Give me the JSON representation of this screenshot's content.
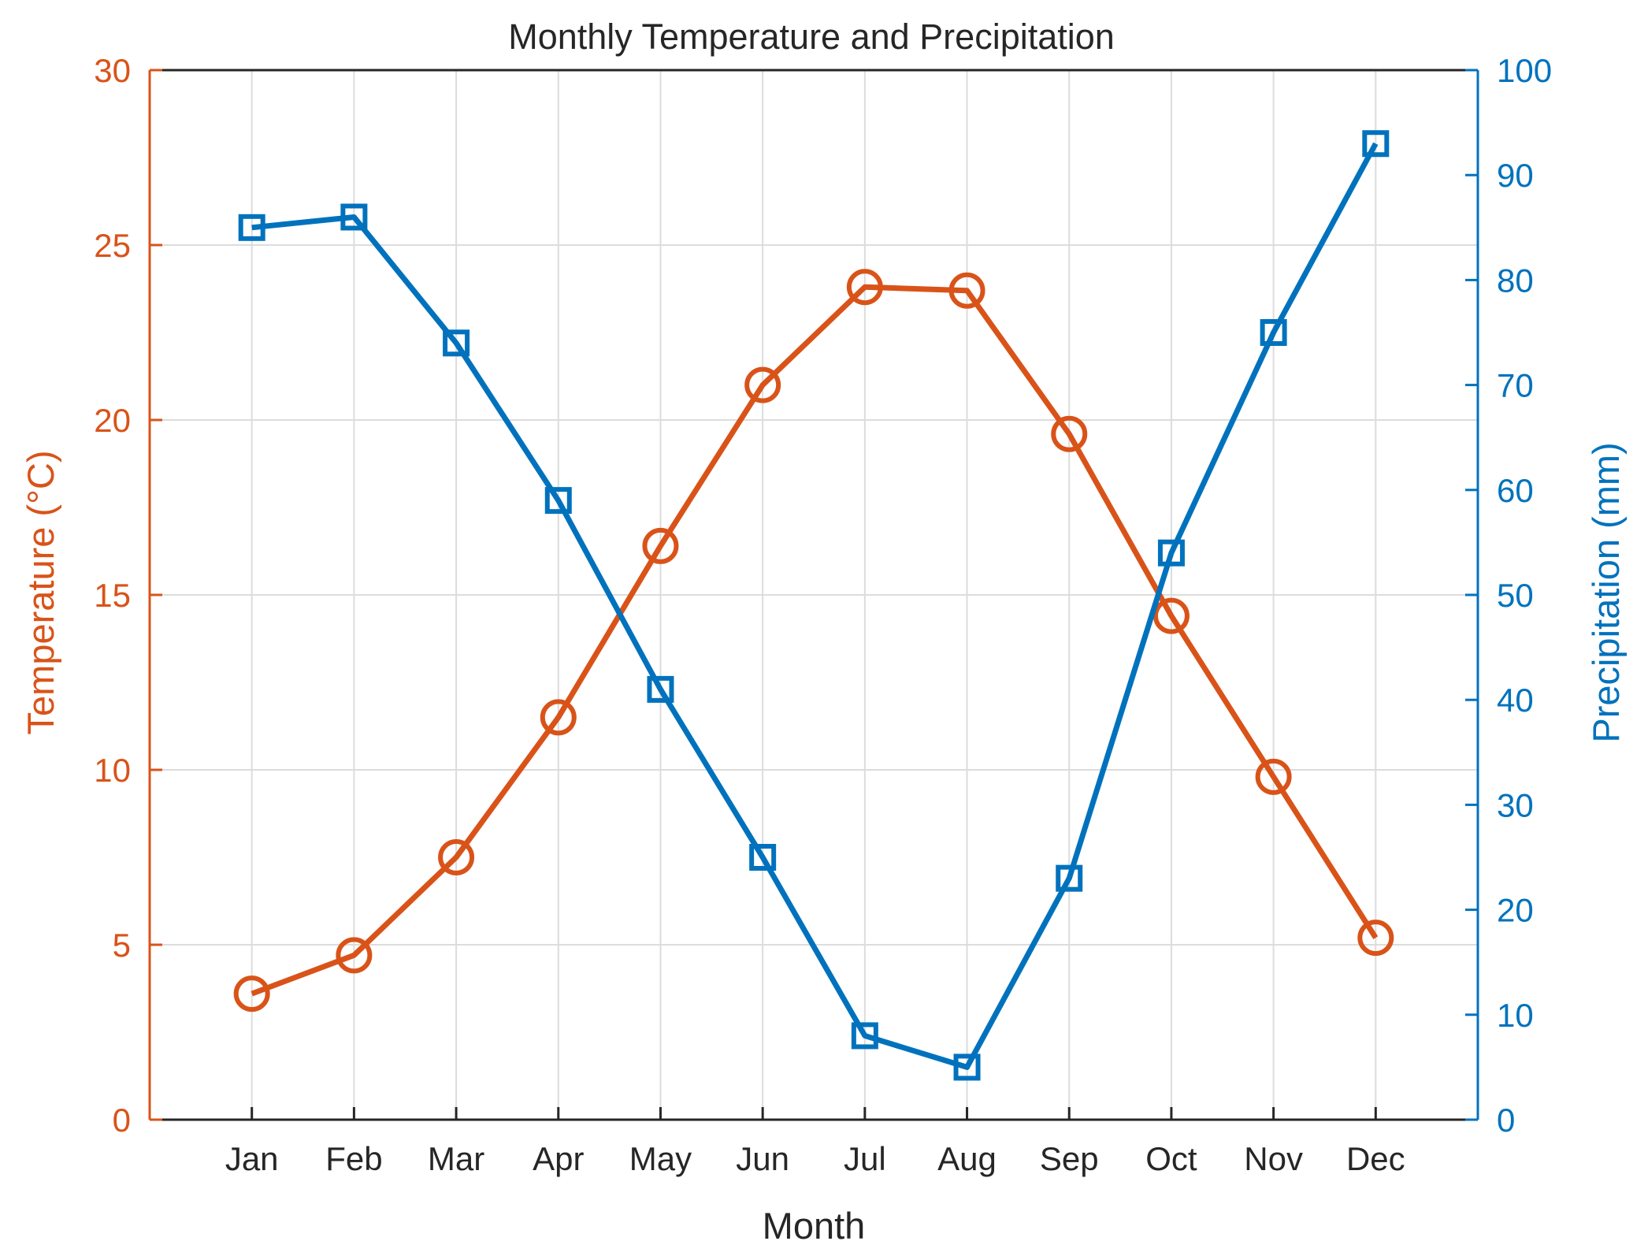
{
  "chart_data": {
    "type": "line",
    "title": "Monthly Temperature and Precipitation",
    "xlabel": "Month",
    "categories": [
      "Jan",
      "Feb",
      "Mar",
      "Apr",
      "May",
      "Jun",
      "Jul",
      "Aug",
      "Sep",
      "Oct",
      "Nov",
      "Dec"
    ],
    "grid": true,
    "left_axis": {
      "label": "Temperature (°C)",
      "color": "#D95319",
      "ylim": [
        0,
        30
      ],
      "ticks": [
        0,
        5,
        10,
        15,
        20,
        25,
        30
      ]
    },
    "right_axis": {
      "label": "Precipitation (mm)",
      "color": "#0072BD",
      "ylim": [
        0,
        100
      ],
      "ticks": [
        0,
        10,
        20,
        30,
        40,
        50,
        60,
        70,
        80,
        90,
        100
      ]
    },
    "series": [
      {
        "name": "Temperature (°C)",
        "axis": "left",
        "marker": "circle",
        "color": "#D95319",
        "values": [
          3.6,
          4.7,
          7.5,
          11.5,
          16.4,
          21.0,
          23.8,
          23.7,
          19.6,
          14.4,
          9.8,
          5.2
        ]
      },
      {
        "name": "Precipitation (mm)",
        "axis": "right",
        "marker": "square",
        "color": "#0072BD",
        "values": [
          85,
          86,
          74,
          59,
          41,
          25,
          8,
          5,
          23,
          54,
          75,
          93
        ]
      }
    ]
  }
}
